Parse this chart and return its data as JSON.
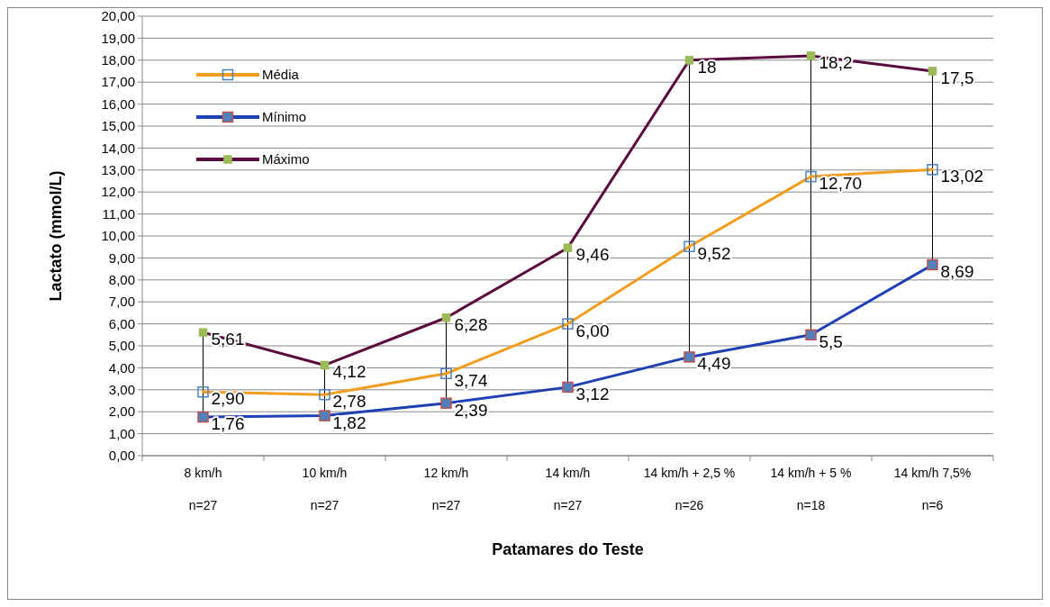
{
  "chart_data": {
    "type": "line",
    "xlabel": "Patamares do Teste",
    "ylabel": "Lactato (mmol/L)",
    "categories": [
      "8 km/h\nn=27",
      "10 km/h\nn=27",
      "12 km/h\nn=27",
      "14 km/h\nn=27",
      "14 km/h + 2,5 %\nn=26",
      "14 km/h + 5 %\nn=18",
      "14 km/h 7,5%\nn=6"
    ],
    "series": [
      {
        "name": "Média",
        "color": "#f29d1f",
        "values": [
          2.9,
          2.78,
          3.74,
          6.0,
          9.52,
          12.7,
          13.02
        ],
        "value_labels": [
          "2,90",
          "2,78",
          "3,74",
          "6,00",
          "9,52",
          "12,70",
          "13,02"
        ]
      },
      {
        "name": "Mínimo",
        "color": "#1f3fb4",
        "values": [
          1.76,
          1.82,
          2.39,
          3.12,
          4.49,
          5.5,
          8.69
        ],
        "value_labels": [
          "1,76",
          "1,82",
          "2,39",
          "3,12",
          "4,49",
          "5,5",
          "8,69"
        ]
      },
      {
        "name": "Máximo",
        "color": "#5a0a3c",
        "values": [
          5.61,
          4.12,
          6.28,
          9.46,
          18,
          18.2,
          17.5
        ],
        "value_labels": [
          "5,61",
          "4,12",
          "6,28",
          "9,46",
          "18",
          "18,2",
          "17,5"
        ]
      }
    ],
    "ylim": [
      0,
      20
    ],
    "yticks": [
      {
        "value": 0,
        "label": "0,00"
      },
      {
        "value": 1,
        "label": "1,00"
      },
      {
        "value": 2,
        "label": "2,00"
      },
      {
        "value": 3,
        "label": "3,00"
      },
      {
        "value": 4,
        "label": "4,00"
      },
      {
        "value": 5,
        "label": "5,00"
      },
      {
        "value": 6,
        "label": "6,00"
      },
      {
        "value": 7,
        "label": "7,00"
      },
      {
        "value": 8,
        "label": "8,00"
      },
      {
        "value": 9,
        "label": "9,00"
      },
      {
        "value": 10,
        "label": "10,00"
      },
      {
        "value": 11,
        "label": "11,00"
      },
      {
        "value": 12,
        "label": "12,00"
      },
      {
        "value": 13,
        "label": "13,00"
      },
      {
        "value": 14,
        "label": "14,00"
      },
      {
        "value": 15,
        "label": "15,00"
      },
      {
        "value": 16,
        "label": "16,00"
      },
      {
        "value": 17,
        "label": "17,00"
      },
      {
        "value": 18,
        "label": "18,00"
      },
      {
        "value": 19,
        "label": "19,00"
      },
      {
        "value": 20,
        "label": "20,00"
      }
    ],
    "grid": "y",
    "legend": "top left",
    "marker": "square",
    "line_style": "solid"
  }
}
